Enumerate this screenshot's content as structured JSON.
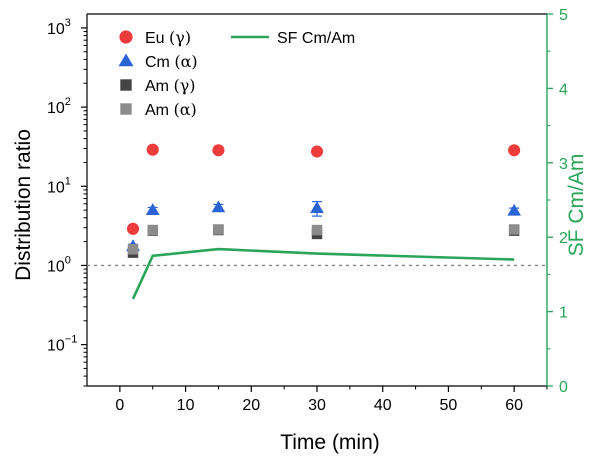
{
  "chart_data": {
    "type": "scatter",
    "title": "",
    "xlabel": "Time (min)",
    "ylabel": "Distribution ratio",
    "y2label": "SF Cm/Am",
    "x_ticks": [
      0,
      10,
      20,
      30,
      40,
      50,
      60
    ],
    "xlim": [
      -5,
      65
    ],
    "y_scale": "log",
    "ylim": [
      0.03,
      1500
    ],
    "y_ticks": [
      {
        "value": 0.1,
        "base": "10",
        "exp": "−1"
      },
      {
        "value": 1,
        "base": "10",
        "exp": "0"
      },
      {
        "value": 10,
        "base": "10",
        "exp": "1"
      },
      {
        "value": 100,
        "base": "10",
        "exp": "2"
      },
      {
        "value": 1000,
        "base": "10",
        "exp": "3"
      }
    ],
    "y2lim": [
      0,
      5
    ],
    "y2_ticks": [
      0,
      1,
      2,
      3,
      4,
      5
    ],
    "reference_line": {
      "axis": "y",
      "value": 1,
      "style": "dotted"
    },
    "legend_position": "top-left",
    "series": [
      {
        "name": "Eu",
        "tag": "(γ)",
        "marker": "circle",
        "color": "#ee3b3b",
        "axis": "left",
        "points": [
          [
            2,
            2.9,
            0.1
          ],
          [
            5,
            29,
            1
          ],
          [
            15,
            28.5,
            1
          ],
          [
            30,
            27.5,
            1
          ],
          [
            60,
            28.5,
            1
          ]
        ]
      },
      {
        "name": "Cm",
        "tag": "(α)",
        "marker": "triangle",
        "color": "#2a63d4",
        "axis": "left",
        "points": [
          [
            2,
            1.75,
            0.1
          ],
          [
            5,
            5.0,
            0.4
          ],
          [
            15,
            5.4,
            0.5
          ],
          [
            30,
            5.3,
            1.1
          ],
          [
            60,
            4.9,
            0.4
          ]
        ]
      },
      {
        "name": "Am",
        "tag": "(γ)",
        "marker": "square",
        "color": "#444444",
        "axis": "left",
        "points": [
          [
            2,
            1.45,
            0.15
          ],
          [
            5,
            2.75,
            0.2
          ],
          [
            15,
            2.8,
            0.2
          ],
          [
            30,
            2.5,
            0.3
          ],
          [
            60,
            2.75,
            0.2
          ]
        ]
      },
      {
        "name": "Am",
        "tag": "(α)",
        "marker": "square",
        "color": "#8c8c8c",
        "axis": "left",
        "points": [
          [
            2,
            1.6,
            0.15
          ],
          [
            5,
            2.8,
            0.2
          ],
          [
            15,
            2.85,
            0.2
          ],
          [
            30,
            2.8,
            0.3
          ],
          [
            60,
            2.85,
            0.2
          ]
        ]
      },
      {
        "name": "SF Cm/Am",
        "tag": "",
        "marker": "line",
        "color": "#2aa55a",
        "axis": "right",
        "points": [
          [
            2,
            1.17
          ],
          [
            5,
            1.75
          ],
          [
            15,
            1.84
          ],
          [
            30,
            1.78
          ],
          [
            60,
            1.7
          ]
        ]
      }
    ],
    "colors": {
      "axis": "#000000",
      "right_axis": "#2aa55a",
      "reference": "#888888"
    }
  }
}
